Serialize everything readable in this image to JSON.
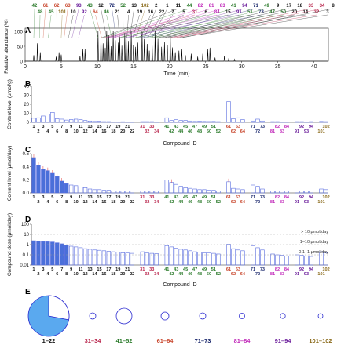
{
  "panels": {
    "a": {
      "letter": "A"
    },
    "b": {
      "letter": "B"
    },
    "c": {
      "letter": "C"
    },
    "d": {
      "letter": "D"
    },
    "e": {
      "letter": "E"
    }
  },
  "colors": {
    "bar": "#5b6ee0",
    "bar_fill_dark": "#4a6fd9",
    "axis": "#222222",
    "g1": "#111111",
    "g2": "#b8234a",
    "g3": "#2a7a2a",
    "g4": "#c8452b",
    "g5": "#1d2a6e",
    "g6": "#c026b8",
    "g7": "#6a1c9a",
    "g8": "#8a6a1a",
    "pie_fill": "#5aa9ef",
    "circle_stroke": "#2c2cd0"
  },
  "chart_data": [
    {
      "panel": "A",
      "type": "line",
      "xlabel": "Time (min)",
      "ylabel": "Relative abundance (%)",
      "xlim": [
        0,
        42
      ],
      "ylim": [
        0,
        100
      ],
      "xticks": [
        0,
        5,
        10,
        15,
        20,
        25,
        30,
        35,
        40
      ],
      "yticks": [
        0,
        50,
        100
      ],
      "peak_labels": [
        {
          "label": "42",
          "group": 3,
          "t": 1.2
        },
        {
          "label": "48",
          "group": 3,
          "t": 2.0
        },
        {
          "label": "61",
          "group": 4,
          "t": 2.5
        },
        {
          "label": "45",
          "group": 3,
          "t": 3.2
        },
        {
          "label": "62",
          "group": 4,
          "t": 4.4
        },
        {
          "label": "101",
          "group": 8,
          "t": 5.0
        },
        {
          "label": "63",
          "group": 4,
          "t": 5.4
        },
        {
          "label": "10",
          "group": 1,
          "t": 6.0
        },
        {
          "label": "93",
          "group": 7,
          "t": 6.5
        },
        {
          "label": "92",
          "group": 7,
          "t": 7.4
        },
        {
          "label": "43",
          "group": 3,
          "t": 10.1
        },
        {
          "label": "64",
          "group": 4,
          "t": 10.6
        },
        {
          "label": "12",
          "group": 1,
          "t": 11.3
        },
        {
          "label": "46",
          "group": 3,
          "t": 12.0
        },
        {
          "label": "72",
          "group": 5,
          "t": 12.6
        },
        {
          "label": "21",
          "group": 1,
          "t": 13.1
        },
        {
          "label": "52",
          "group": 3,
          "t": 13.6
        },
        {
          "label": "4",
          "group": 1,
          "t": 14.1
        },
        {
          "label": "13",
          "group": 1,
          "t": 14.5
        },
        {
          "label": "19",
          "group": 1,
          "t": 14.9
        },
        {
          "label": "102",
          "group": 8,
          "t": 15.4
        },
        {
          "label": "16",
          "group": 1,
          "t": 16.0
        },
        {
          "label": "2",
          "group": 1,
          "t": 16.5
        },
        {
          "label": "22",
          "group": 1,
          "t": 17.0
        },
        {
          "label": "1",
          "group": 1,
          "t": 17.6
        },
        {
          "label": "7",
          "group": 1,
          "t": 18.0
        },
        {
          "label": "11",
          "group": 1,
          "t": 10.6
        },
        {
          "label": "5",
          "group": 1,
          "t": 15.6
        },
        {
          "label": "44",
          "group": 3,
          "t": 10.8
        },
        {
          "label": "31",
          "group": 2,
          "t": 11.0
        },
        {
          "label": "82",
          "group": 6,
          "t": 11.2
        },
        {
          "label": "6",
          "group": 1,
          "t": 11.4
        },
        {
          "label": "81",
          "group": 6,
          "t": 11.6
        },
        {
          "label": "84",
          "group": 6,
          "t": 11.9
        },
        {
          "label": "83",
          "group": 6,
          "t": 12.3
        },
        {
          "label": "15",
          "group": 1,
          "t": 12.9
        },
        {
          "label": "41",
          "group": 3,
          "t": 13.3
        },
        {
          "label": "91",
          "group": 7,
          "t": 13.8
        },
        {
          "label": "94",
          "group": 7,
          "t": 14.3
        },
        {
          "label": "51",
          "group": 3,
          "t": 15.2
        },
        {
          "label": "71",
          "group": 5,
          "t": 15.8
        },
        {
          "label": "73",
          "group": 5,
          "t": 16.3
        },
        {
          "label": "49",
          "group": 3,
          "t": 16.8
        },
        {
          "label": "47",
          "group": 3,
          "t": 17.3
        },
        {
          "label": "9",
          "group": 1,
          "t": 17.8
        },
        {
          "label": "50",
          "group": 3,
          "t": 18.2
        },
        {
          "label": "17",
          "group": 1,
          "t": 18.6
        },
        {
          "label": "20",
          "group": 1,
          "t": 19.0
        },
        {
          "label": "18",
          "group": 1,
          "t": 19.4
        },
        {
          "label": "14",
          "group": 1,
          "t": 19.8
        },
        {
          "label": "33",
          "group": 2,
          "t": 20.2
        },
        {
          "label": "32",
          "group": 2,
          "t": 20.6
        },
        {
          "label": "34",
          "group": 2,
          "t": 21.0
        },
        {
          "label": "3",
          "group": 1,
          "t": 21.4
        },
        {
          "label": "8",
          "group": 1,
          "t": 21.8
        }
      ],
      "peaks": [
        [
          1.2,
          20
        ],
        [
          1.7,
          60
        ],
        [
          2.1,
          30
        ],
        [
          4.3,
          15
        ],
        [
          4.7,
          30
        ],
        [
          5.0,
          22
        ],
        [
          7.6,
          18
        ],
        [
          8.0,
          42
        ],
        [
          8.3,
          40
        ],
        [
          10.1,
          100
        ],
        [
          10.5,
          95
        ],
        [
          10.8,
          60
        ],
        [
          11.1,
          45
        ],
        [
          11.3,
          100
        ],
        [
          11.6,
          88
        ],
        [
          11.9,
          50
        ],
        [
          12.2,
          100
        ],
        [
          12.5,
          70
        ],
        [
          12.9,
          62
        ],
        [
          13.1,
          80
        ],
        [
          13.4,
          52
        ],
        [
          13.8,
          95
        ],
        [
          14.0,
          85
        ],
        [
          14.3,
          68
        ],
        [
          14.7,
          100
        ],
        [
          15.0,
          55
        ],
        [
          15.3,
          48
        ],
        [
          15.6,
          62
        ],
        [
          16.2,
          100
        ],
        [
          16.5,
          74
        ],
        [
          16.9,
          58
        ],
        [
          17.2,
          35
        ],
        [
          17.6,
          52
        ],
        [
          18.0,
          100
        ],
        [
          18.4,
          75
        ],
        [
          18.9,
          48
        ],
        [
          19.3,
          65
        ],
        [
          19.7,
          55
        ],
        [
          20.1,
          100
        ],
        [
          20.4,
          46
        ],
        [
          20.8,
          30
        ],
        [
          21.3,
          35
        ],
        [
          21.7,
          40
        ],
        [
          22.2,
          20
        ],
        [
          23.0,
          25
        ],
        [
          23.9,
          15
        ],
        [
          24.6,
          25
        ],
        [
          25.3,
          40
        ],
        [
          25.6,
          45
        ],
        [
          26.3,
          12
        ],
        [
          27.6,
          18
        ],
        [
          28.2,
          10
        ],
        [
          29.0,
          6
        ]
      ]
    },
    {
      "panel": "B",
      "type": "bar",
      "xlabel": "Compound ID",
      "ylabel": "Content level (μmol/g)",
      "ylim": [
        0,
        40
      ],
      "yticks": [
        0,
        10,
        20,
        30,
        40
      ],
      "categories": [
        "1",
        "2",
        "3",
        "4",
        "5",
        "6",
        "7",
        "8",
        "9",
        "10",
        "11",
        "12",
        "13",
        "14",
        "15",
        "16",
        "17",
        "18",
        "19",
        "20",
        "21",
        "22",
        "31",
        "32",
        "33",
        "34",
        "41",
        "42",
        "43",
        "44",
        "45",
        "46",
        "47",
        "48",
        "49",
        "50",
        "51",
        "52",
        "61",
        "62",
        "63",
        "64",
        "71",
        "72",
        "73",
        "81",
        "82",
        "83",
        "84",
        "91",
        "92",
        "93",
        "94",
        "101",
        "102"
      ],
      "values": [
        4.5,
        5,
        7,
        9,
        11,
        4,
        3.5,
        2.5,
        3,
        3.5,
        3,
        2,
        1.5,
        1,
        1.2,
        0.8,
        0.8,
        0.6,
        0.6,
        0.7,
        0.6,
        0.5,
        0.8,
        0.8,
        0.8,
        0.6,
        5,
        2,
        3,
        2,
        2,
        1.5,
        1,
        1.3,
        1,
        0.9,
        1,
        0.8,
        23,
        4,
        5,
        3,
        1.5,
        3.5,
        1.5,
        0.8,
        0.8,
        0.6,
        0.6,
        0.8,
        0.8,
        0.6,
        0.8,
        1,
        0.8
      ]
    },
    {
      "panel": "C",
      "type": "bar",
      "xlabel": "",
      "ylabel": "Content level (μmol/day)",
      "ylim": [
        0,
        0.6
      ],
      "yticks": [
        0.0,
        0.2,
        0.4,
        0.6
      ],
      "categories": [
        "1",
        "2",
        "3",
        "4",
        "5",
        "6",
        "7",
        "8",
        "9",
        "10",
        "11",
        "12",
        "13",
        "14",
        "15",
        "16",
        "17",
        "18",
        "19",
        "20",
        "21",
        "22",
        "31",
        "32",
        "33",
        "34",
        "41",
        "42",
        "43",
        "44",
        "45",
        "46",
        "47",
        "48",
        "49",
        "50",
        "51",
        "52",
        "61",
        "62",
        "63",
        "64",
        "71",
        "72",
        "73",
        "81",
        "82",
        "83",
        "84",
        "91",
        "92",
        "93",
        "94",
        "101",
        "102"
      ],
      "values": [
        0.54,
        0.42,
        0.36,
        0.34,
        0.3,
        0.25,
        0.18,
        0.14,
        0.12,
        0.11,
        0.09,
        0.08,
        0.06,
        0.05,
        0.05,
        0.04,
        0.04,
        0.03,
        0.03,
        0.03,
        0.03,
        0.03,
        0.03,
        0.03,
        0.03,
        0.03,
        0.2,
        0.16,
        0.13,
        0.1,
        0.08,
        0.07,
        0.06,
        0.05,
        0.05,
        0.04,
        0.04,
        0.03,
        0.17,
        0.07,
        0.06,
        0.05,
        0.12,
        0.1,
        0.06,
        0.03,
        0.03,
        0.03,
        0.03,
        0.03,
        0.03,
        0.03,
        0.03,
        0.06,
        0.05
      ]
    },
    {
      "panel": "D",
      "type": "bar",
      "xlabel": "Compound ID",
      "ylabel": "Compound dose (μmol/day)",
      "yscale": "log",
      "ylim": [
        0.01,
        100
      ],
      "yticks": [
        0.01,
        0.1,
        1,
        10,
        100
      ],
      "ytick_labels": [
        "0.01",
        "0.1",
        "1",
        "10",
        "100"
      ],
      "categories": [
        "1",
        "2",
        "3",
        "4",
        "5",
        "6",
        "7",
        "8",
        "9",
        "10",
        "11",
        "12",
        "13",
        "14",
        "15",
        "16",
        "17",
        "18",
        "19",
        "20",
        "21",
        "22",
        "31",
        "32",
        "33",
        "34",
        "41",
        "42",
        "43",
        "44",
        "45",
        "46",
        "47",
        "48",
        "49",
        "50",
        "51",
        "52",
        "61",
        "62",
        "63",
        "64",
        "71",
        "72",
        "73",
        "81",
        "82",
        "83",
        "84",
        "91",
        "92",
        "93",
        "94",
        "101",
        "102"
      ],
      "values": [
        2.4,
        2.1,
        2.0,
        1.9,
        1.8,
        1.5,
        1.2,
        0.9,
        0.7,
        0.6,
        0.5,
        0.4,
        0.35,
        0.3,
        0.28,
        0.25,
        0.22,
        0.2,
        0.18,
        0.16,
        0.15,
        0.14,
        0.2,
        0.15,
        0.14,
        0.13,
        0.8,
        0.6,
        0.45,
        0.35,
        0.3,
        0.25,
        0.2,
        0.18,
        0.16,
        0.15,
        0.14,
        0.12,
        1.1,
        0.4,
        0.3,
        0.25,
        0.8,
        0.5,
        0.3,
        0.12,
        0.1,
        0.09,
        0.08,
        0.1,
        0.09,
        0.08,
        0.07,
        0.2,
        0.15
      ],
      "thresholds": [
        {
          "label": "> 10 μmol/day",
          "value": 10
        },
        {
          "label": "1–10 μmol/day",
          "value": 1
        },
        {
          "label": "0.1–1 μmol/day",
          "value": 0.1
        }
      ]
    },
    {
      "panel": "E",
      "type": "pie",
      "groups": [
        {
          "label": "1–22",
          "group": 1,
          "fraction": 0.72
        },
        {
          "label": "31–34",
          "group": 2,
          "fraction": 0.01
        },
        {
          "label": "41–52",
          "group": 3,
          "fraction": 0.08
        },
        {
          "label": "61–64",
          "group": 4,
          "fraction": 0.03
        },
        {
          "label": "71–73",
          "group": 5,
          "fraction": 0.02
        },
        {
          "label": "81–84",
          "group": 6,
          "fraction": 0.01
        },
        {
          "label": "91–94",
          "group": 7,
          "fraction": 0.01
        },
        {
          "label": "101–102",
          "group": 8,
          "fraction": 0.01
        }
      ]
    }
  ]
}
